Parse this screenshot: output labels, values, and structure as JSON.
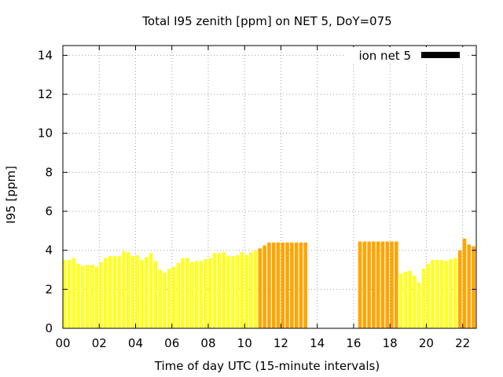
{
  "chart_data": {
    "type": "bar",
    "title": "Total I95 zenith [ppm] on NET 5, DoY=075",
    "xlabel": "Time of day UTC (15-minute intervals)",
    "ylabel": "I95 [ppm]",
    "xlim": [
      0,
      22.75
    ],
    "ylim": [
      0,
      14.5
    ],
    "xticks": [
      0,
      2,
      4,
      6,
      8,
      10,
      12,
      14,
      16,
      18,
      20,
      22
    ],
    "xtick_labels": [
      "00",
      "02",
      "04",
      "06",
      "08",
      "10",
      "12",
      "14",
      "16",
      "18",
      "20",
      "22"
    ],
    "yticks": [
      0,
      2,
      4,
      6,
      8,
      10,
      12,
      14
    ],
    "ytick_labels": [
      "0",
      "2",
      "4",
      "6",
      "8",
      "10",
      "12",
      "14"
    ],
    "grid": true,
    "legend": {
      "placement": "top-right",
      "entries": [
        {
          "label": "ion net 5",
          "color": "#000000"
        }
      ]
    },
    "colors": {
      "normal": "#ffff22",
      "elevated": "#ffa500"
    },
    "bar_width_hours": 0.2,
    "series": [
      {
        "interval_hours": 0.25,
        "points": [
          [
            0.0,
            3.5,
            "normal"
          ],
          [
            0.25,
            3.5,
            "normal"
          ],
          [
            0.5,
            3.6,
            "normal"
          ],
          [
            0.75,
            3.3,
            "normal"
          ],
          [
            1.0,
            3.2,
            "normal"
          ],
          [
            1.25,
            3.25,
            "normal"
          ],
          [
            1.5,
            3.25,
            "normal"
          ],
          [
            1.75,
            3.15,
            "normal"
          ],
          [
            2.0,
            3.4,
            "normal"
          ],
          [
            2.25,
            3.6,
            "normal"
          ],
          [
            2.5,
            3.7,
            "normal"
          ],
          [
            2.75,
            3.7,
            "normal"
          ],
          [
            3.0,
            3.7,
            "normal"
          ],
          [
            3.25,
            3.95,
            "normal"
          ],
          [
            3.5,
            3.9,
            "normal"
          ],
          [
            3.75,
            3.7,
            "normal"
          ],
          [
            4.0,
            3.75,
            "normal"
          ],
          [
            4.25,
            3.5,
            "normal"
          ],
          [
            4.5,
            3.65,
            "normal"
          ],
          [
            4.75,
            3.85,
            "normal"
          ],
          [
            5.0,
            3.45,
            "normal"
          ],
          [
            5.25,
            3.0,
            "normal"
          ],
          [
            5.5,
            2.85,
            "normal"
          ],
          [
            5.75,
            3.05,
            "normal"
          ],
          [
            6.0,
            3.15,
            "normal"
          ],
          [
            6.25,
            3.35,
            "normal"
          ],
          [
            6.5,
            3.6,
            "normal"
          ],
          [
            6.75,
            3.6,
            "normal"
          ],
          [
            7.0,
            3.4,
            "normal"
          ],
          [
            7.25,
            3.45,
            "normal"
          ],
          [
            7.5,
            3.45,
            "normal"
          ],
          [
            7.75,
            3.55,
            "normal"
          ],
          [
            8.0,
            3.6,
            "normal"
          ],
          [
            8.25,
            3.85,
            "normal"
          ],
          [
            8.5,
            3.85,
            "normal"
          ],
          [
            8.75,
            3.9,
            "normal"
          ],
          [
            9.0,
            3.7,
            "normal"
          ],
          [
            9.25,
            3.7,
            "normal"
          ],
          [
            9.5,
            3.75,
            "normal"
          ],
          [
            9.75,
            3.9,
            "normal"
          ],
          [
            10.0,
            3.75,
            "normal"
          ],
          [
            10.25,
            3.9,
            "normal"
          ],
          [
            10.5,
            4.0,
            "normal"
          ],
          [
            10.75,
            4.1,
            "elevated"
          ],
          [
            11.0,
            4.25,
            "elevated"
          ],
          [
            11.25,
            4.4,
            "elevated"
          ],
          [
            11.5,
            4.4,
            "elevated"
          ],
          [
            11.75,
            4.4,
            "elevated"
          ],
          [
            12.0,
            4.4,
            "elevated"
          ],
          [
            12.25,
            4.4,
            "elevated"
          ],
          [
            12.5,
            4.4,
            "elevated"
          ],
          [
            12.75,
            4.4,
            "elevated"
          ],
          [
            13.0,
            4.4,
            "elevated"
          ],
          [
            13.25,
            4.4,
            "elevated"
          ],
          [
            16.25,
            4.45,
            "elevated"
          ],
          [
            16.5,
            4.45,
            "elevated"
          ],
          [
            16.75,
            4.45,
            "elevated"
          ],
          [
            17.0,
            4.45,
            "elevated"
          ],
          [
            17.25,
            4.45,
            "elevated"
          ],
          [
            17.5,
            4.45,
            "elevated"
          ],
          [
            17.75,
            4.45,
            "elevated"
          ],
          [
            18.0,
            4.45,
            "elevated"
          ],
          [
            18.25,
            4.45,
            "elevated"
          ],
          [
            18.5,
            2.8,
            "normal"
          ],
          [
            18.75,
            2.9,
            "normal"
          ],
          [
            19.0,
            2.95,
            "normal"
          ],
          [
            19.25,
            2.7,
            "normal"
          ],
          [
            19.5,
            2.35,
            "normal"
          ],
          [
            19.75,
            3.05,
            "normal"
          ],
          [
            20.0,
            3.3,
            "normal"
          ],
          [
            20.25,
            3.5,
            "normal"
          ],
          [
            20.5,
            3.5,
            "normal"
          ],
          [
            20.75,
            3.5,
            "normal"
          ],
          [
            21.0,
            3.45,
            "normal"
          ],
          [
            21.25,
            3.55,
            "normal"
          ],
          [
            21.5,
            3.6,
            "normal"
          ],
          [
            21.75,
            4.0,
            "elevated"
          ],
          [
            22.0,
            4.6,
            "elevated"
          ],
          [
            22.25,
            4.3,
            "elevated"
          ],
          [
            22.5,
            4.2,
            "elevated"
          ],
          [
            22.75,
            3.95,
            "elevated"
          ]
        ]
      }
    ]
  }
}
